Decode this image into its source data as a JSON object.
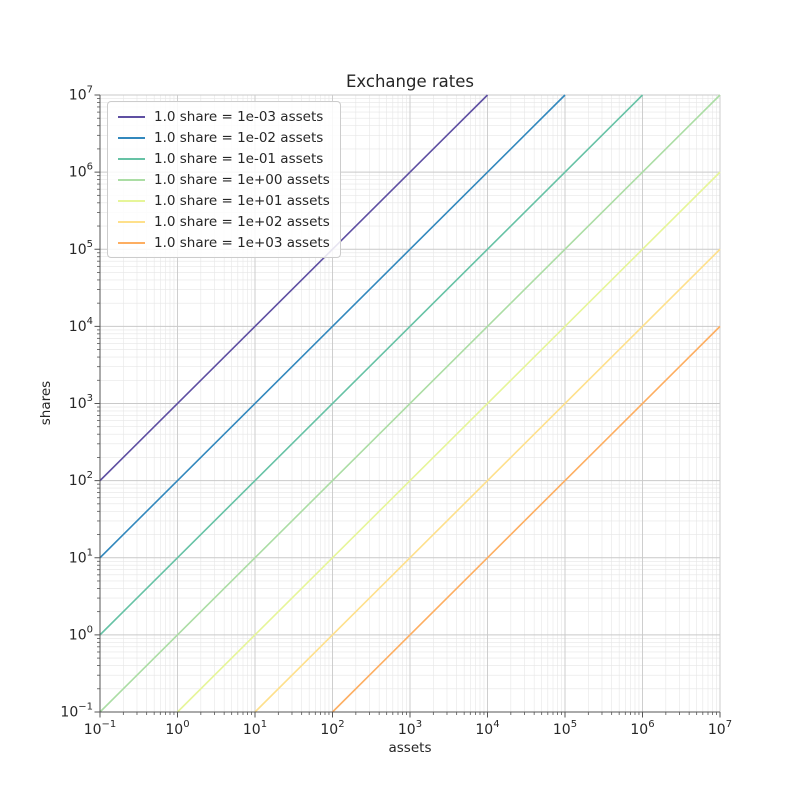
{
  "figure": {
    "background": "#ffffff"
  },
  "chart_data": {
    "type": "line",
    "title": "Exchange rates",
    "xlabel": "assets",
    "ylabel": "shares",
    "xscale": "log",
    "yscale": "log",
    "xlim": [
      0.1,
      10000000
    ],
    "ylim": [
      0.1,
      10000000
    ],
    "tick_label_base": "10",
    "x_tick_exponents": [
      -1,
      0,
      1,
      2,
      3,
      4,
      5,
      6,
      7
    ],
    "y_tick_exponents": [
      -1,
      0,
      1,
      2,
      3,
      4,
      5,
      6,
      7
    ],
    "grid": {
      "major": true,
      "minor": true,
      "major_color": "#c9c9c9",
      "minor_color": "#e6e6e6"
    },
    "axis_style": {
      "spine_color": "#555555",
      "text_color": "#262626"
    },
    "legend": {
      "position": "upper-left"
    },
    "series": [
      {
        "name": "1.0 share = 1e-03 assets",
        "rate": 0.001,
        "color": "#5e4fa2",
        "points": [
          [
            0.1,
            100
          ],
          [
            10000,
            10000000
          ]
        ]
      },
      {
        "name": "1.0 share = 1e-02 assets",
        "rate": 0.01,
        "color": "#3288bd",
        "points": [
          [
            0.1,
            10
          ],
          [
            100000,
            10000000
          ]
        ]
      },
      {
        "name": "1.0 share = 1e-01 assets",
        "rate": 0.1,
        "color": "#66c2a5",
        "points": [
          [
            0.1,
            1
          ],
          [
            1000000,
            10000000
          ]
        ]
      },
      {
        "name": "1.0 share = 1e+00 assets",
        "rate": 1,
        "color": "#abdda4",
        "points": [
          [
            0.1,
            0.1
          ],
          [
            10000000,
            10000000
          ]
        ]
      },
      {
        "name": "1.0 share = 1e+01 assets",
        "rate": 10,
        "color": "#e6f598",
        "points": [
          [
            1,
            0.1
          ],
          [
            10000000,
            1000000
          ]
        ]
      },
      {
        "name": "1.0 share = 1e+02 assets",
        "rate": 100,
        "color": "#fee08b",
        "points": [
          [
            10,
            0.1
          ],
          [
            10000000,
            100000
          ]
        ]
      },
      {
        "name": "1.0 share = 1e+03 assets",
        "rate": 1000,
        "color": "#fdae61",
        "points": [
          [
            100,
            0.1
          ],
          [
            10000000,
            10000
          ]
        ]
      }
    ]
  }
}
